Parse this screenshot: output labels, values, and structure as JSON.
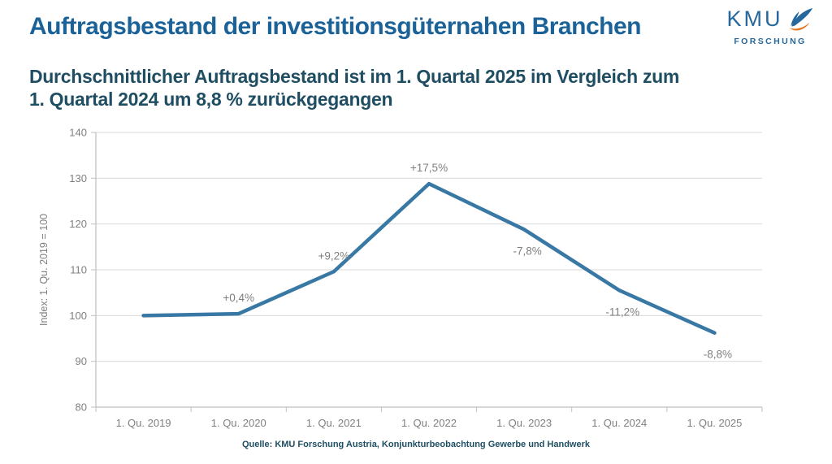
{
  "header": {
    "title": "Auftragsbestand der investitionsgüternahen Branchen",
    "subtitle_line1": "Durchschnittlicher Auftragsbestand ist im 1. Quartal 2025 im Vergleich zum",
    "subtitle_line2": "1. Quartal 2024 um 8,8 % zurückgegangen",
    "logo": {
      "text": "KMU",
      "subtext": "FORSCHUNG"
    }
  },
  "chart_data": {
    "type": "line",
    "title": "",
    "categories": [
      "1. Qu. 2019",
      "1. Qu. 2020",
      "1. Qu. 2021",
      "1. Qu. 2022",
      "1. Qu. 2023",
      "1. Qu. 2024",
      "1. Qu. 2025"
    ],
    "values": [
      100.0,
      100.4,
      109.6,
      128.8,
      118.8,
      105.5,
      96.2
    ],
    "point_labels": [
      "",
      "+0,4%",
      "+9,2%",
      "+17,5%",
      "-7,8%",
      "-11,2%",
      "-8,8%"
    ],
    "label_positions": [
      "",
      "above",
      "above",
      "above",
      "below",
      "below",
      "below"
    ],
    "xlabel": "",
    "ylabel": "Index: 1. Qu. 2019 = 100",
    "ylim": [
      80,
      140
    ],
    "yticks": [
      80,
      90,
      100,
      110,
      120,
      130,
      140
    ],
    "grid": true,
    "legend": "none",
    "line_color": "#3878a4",
    "grid_color": "#d9d9d9",
    "axis_color": "#bfbfbf",
    "tick_label_color": "#7f7f7f",
    "data_label_color": "#7f7f7f"
  },
  "footer": {
    "source": "Quelle: KMU Forschung Austria, Konjunkturbeobachtung Gewerbe und Handwerk"
  },
  "colors": {
    "title_blue": "#1a6298",
    "subtitle_petrol": "#1f4e63",
    "logo_blue": "#26689c",
    "logo_orange": "#e87722"
  }
}
